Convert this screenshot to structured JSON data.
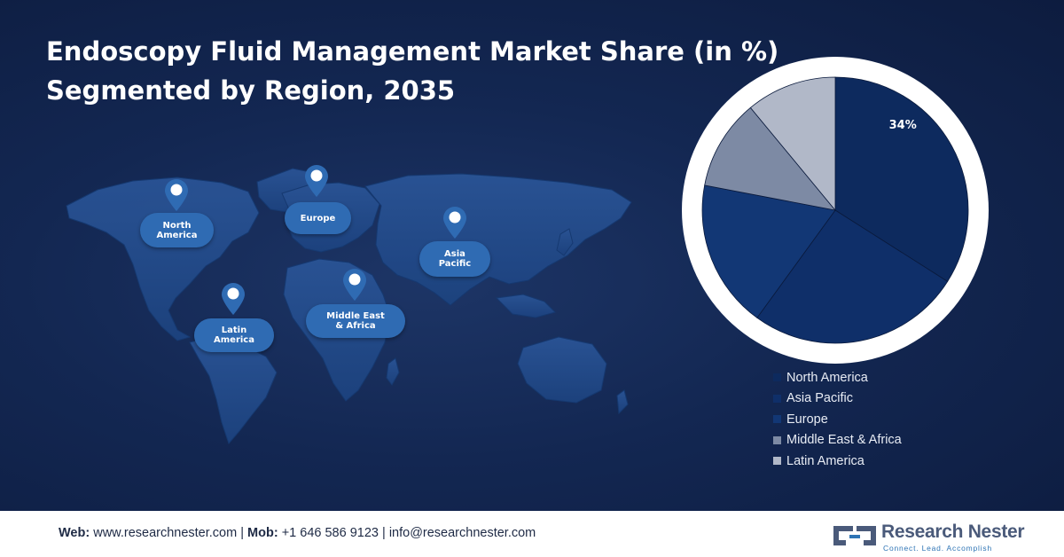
{
  "title": {
    "line1": "Endoscopy Fluid Management Market Share (in %)",
    "line2": "Segmented by Region, 2035"
  },
  "map_labels": [
    {
      "id": "north-america",
      "text": "North\nAmerica"
    },
    {
      "id": "europe",
      "text": "Europe"
    },
    {
      "id": "asia-pacific",
      "text": "Asia\nPacific"
    },
    {
      "id": "latin-america",
      "text": "Latin\nAmerica"
    },
    {
      "id": "middle-east-africa",
      "text": "Middle East\n& Africa"
    }
  ],
  "chart_data": {
    "type": "pie",
    "title": "",
    "series": [
      {
        "name": "North America",
        "value": 34,
        "color": "#0d2a5e"
      },
      {
        "name": "Asia Pacific",
        "value": 26,
        "color": "#0f2f69"
      },
      {
        "name": "Europe",
        "value": 18,
        "color": "#123775"
      },
      {
        "name": "Middle East & Africa",
        "value": 11,
        "color": "#7d8aa4"
      },
      {
        "name": "Latin America",
        "value": 11,
        "color": "#b1b8c8"
      }
    ],
    "data_labels": [
      "34%",
      "",
      "",
      "",
      ""
    ],
    "legend_position": "bottom"
  },
  "footer": {
    "web_label": "Web:",
    "web_value": "www.researchnester.com",
    "sep1": "|",
    "mob_label": "Mob:",
    "mob_value": "+1 646 586 9123",
    "sep2": "|",
    "email": "info@researchnester.com"
  },
  "logo": {
    "name": "Research Nester",
    "tagline": "Connect. Lead. Accomplish"
  }
}
